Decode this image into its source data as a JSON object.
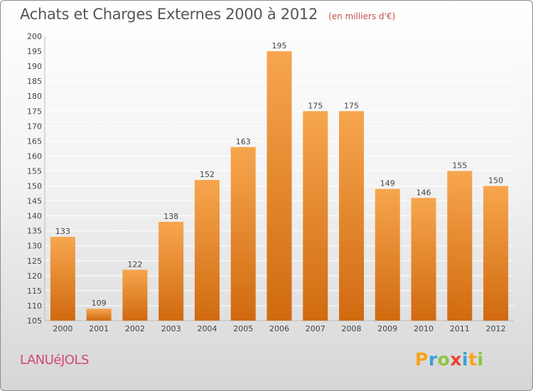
{
  "title": "Achats et Charges Externes 2000 à 2012",
  "subtitle": "(en milliers d'€)",
  "place": "LANUéJOLS",
  "brand": {
    "letters": [
      "P",
      "r",
      "o",
      "x",
      "i",
      "t",
      "i"
    ],
    "colors": [
      "#f7a21b",
      "#3aa0d8",
      "#8cc63f",
      "#e8452c",
      "#3aa0d8",
      "#f7a21b",
      "#8cc63f"
    ]
  },
  "colors": {
    "bar_top": "#f7a64e",
    "bar_bottom": "#d06a10",
    "grid": "#ffffff",
    "axis_text": "#444444",
    "title": "#555555",
    "place": "#d04a6e"
  },
  "chart_data": {
    "type": "bar",
    "categories": [
      "2000",
      "2001",
      "2002",
      "2003",
      "2004",
      "2005",
      "2006",
      "2007",
      "2008",
      "2009",
      "2010",
      "2011",
      "2012"
    ],
    "values": [
      133,
      109,
      122,
      138,
      152,
      163,
      195,
      175,
      175,
      149,
      146,
      155,
      150
    ],
    "title": "Achats et Charges Externes 2000 à 2012",
    "subtitle": "(en milliers d'€)",
    "xlabel": "",
    "ylabel": "",
    "ylim": [
      105,
      200
    ],
    "yticks": [
      105,
      110,
      115,
      120,
      125,
      130,
      135,
      140,
      145,
      150,
      155,
      160,
      165,
      170,
      175,
      180,
      185,
      190,
      195,
      200
    ],
    "grid": true,
    "data_labels": true
  }
}
